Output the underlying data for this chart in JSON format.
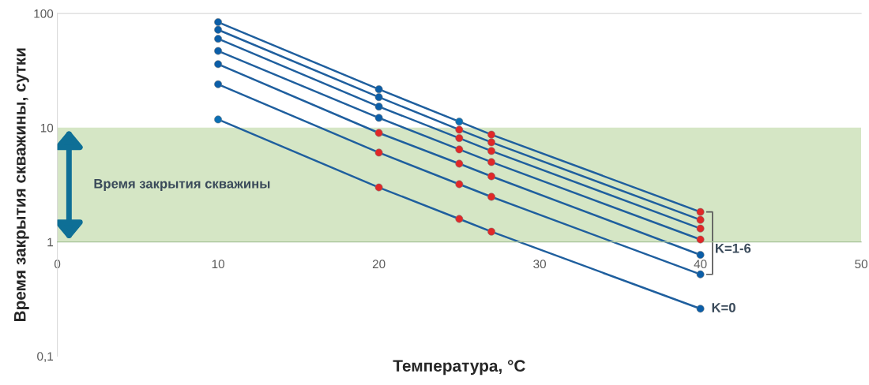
{
  "chart_data": {
    "type": "line",
    "xlabel": "Температура, °C",
    "ylabel": "Время закрытия скважины, сутки",
    "log": "y",
    "xlim": [
      0,
      50
    ],
    "xticks": [
      0,
      10,
      20,
      30,
      40,
      50
    ],
    "ylim": [
      0.1,
      100
    ],
    "yticks": [
      {
        "value": 0.1,
        "label": "0,1"
      },
      1,
      10,
      100
    ],
    "grid": false,
    "marker": "circle",
    "line_style": "solid",
    "x": [
      10,
      20,
      25,
      27,
      40
    ],
    "series": [
      {
        "color": "#1f5f9e",
        "values": [
          84,
          21.7,
          11.3,
          8.7,
          1.83
        ],
        "colors": [
          "#0b5ea8",
          "#0b5ea8",
          "#0b6fb5",
          "#e02828",
          "#e02828"
        ]
      },
      {
        "color": "#1f5f9e",
        "values": [
          72,
          18.5,
          9.6,
          7.45,
          1.56
        ],
        "colors": [
          "#0b5ea8",
          "#0b5ea8",
          "#e02828",
          "#e02828",
          "#e02828"
        ]
      },
      {
        "color": "#1f5f9e",
        "values": [
          60,
          15.3,
          8.1,
          6.25,
          1.31
        ],
        "colors": [
          "#0b5ea8",
          "#0b5ea8",
          "#e02828",
          "#e02828",
          "#e02828"
        ]
      },
      {
        "color": "#1f5f9e",
        "values": [
          47,
          12.2,
          6.45,
          5.0,
          1.05
        ],
        "colors": [
          "#0b5ea8",
          "#0b5ea8",
          "#e02828",
          "#e02828",
          "#e02828"
        ]
      },
      {
        "color": "#1f5f9e",
        "values": [
          36,
          9.0,
          4.84,
          3.75,
          0.77
        ],
        "colors": [
          "#0b5ea8",
          "#e02828",
          "#e02828",
          "#e02828",
          "#0b5ea8"
        ]
      },
      {
        "color": "#1f5f9e",
        "values": [
          24,
          6.05,
          3.2,
          2.48,
          0.52
        ],
        "colors": [
          "#0b5ea8",
          "#e02828",
          "#e02828",
          "#e02828",
          "#0b5ea8"
        ]
      },
      {
        "color": "#1f5f9e",
        "values": [
          11.8,
          3.0,
          1.59,
          1.23,
          0.26
        ],
        "colors": [
          "#0b6fb5",
          "#e02828",
          "#e02828",
          "#e02828",
          "#0b5ea8"
        ]
      }
    ],
    "bands": [
      {
        "axis": "y",
        "from": 1,
        "to": 10,
        "label": "Время закрытия скважины",
        "color": "#d5e6c5"
      }
    ],
    "annotations": [
      {
        "text": "K=0",
        "x": 40,
        "y": 0.26
      },
      "K=1-6"
    ]
  }
}
